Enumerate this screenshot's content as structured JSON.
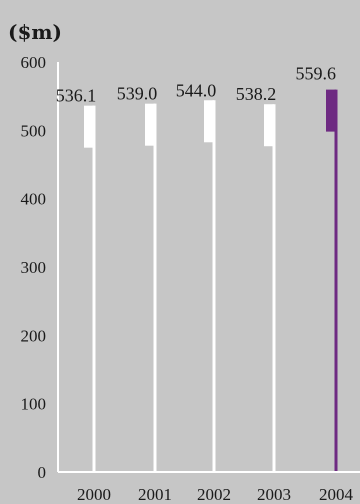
{
  "chart_data": {
    "type": "bar",
    "unit_label": "($m)",
    "categories": [
      "2000",
      "2001",
      "2002",
      "2003",
      "2004"
    ],
    "values": [
      536.1,
      539.0,
      544.0,
      538.2,
      559.6
    ],
    "value_labels": [
      "536.1",
      "539.0",
      "544.0",
      "538.2",
      "559.6"
    ],
    "y_ticks": [
      "0",
      "100",
      "200",
      "300",
      "400",
      "500",
      "600"
    ],
    "ylim": [
      0,
      600
    ],
    "grid": false,
    "highlight_index": 4,
    "colors": {
      "background": "#c6c6c6",
      "bar": "#ffffff",
      "highlight": "#6e2a82",
      "axis": "#ffffff",
      "text": "#1a1a1a"
    }
  }
}
